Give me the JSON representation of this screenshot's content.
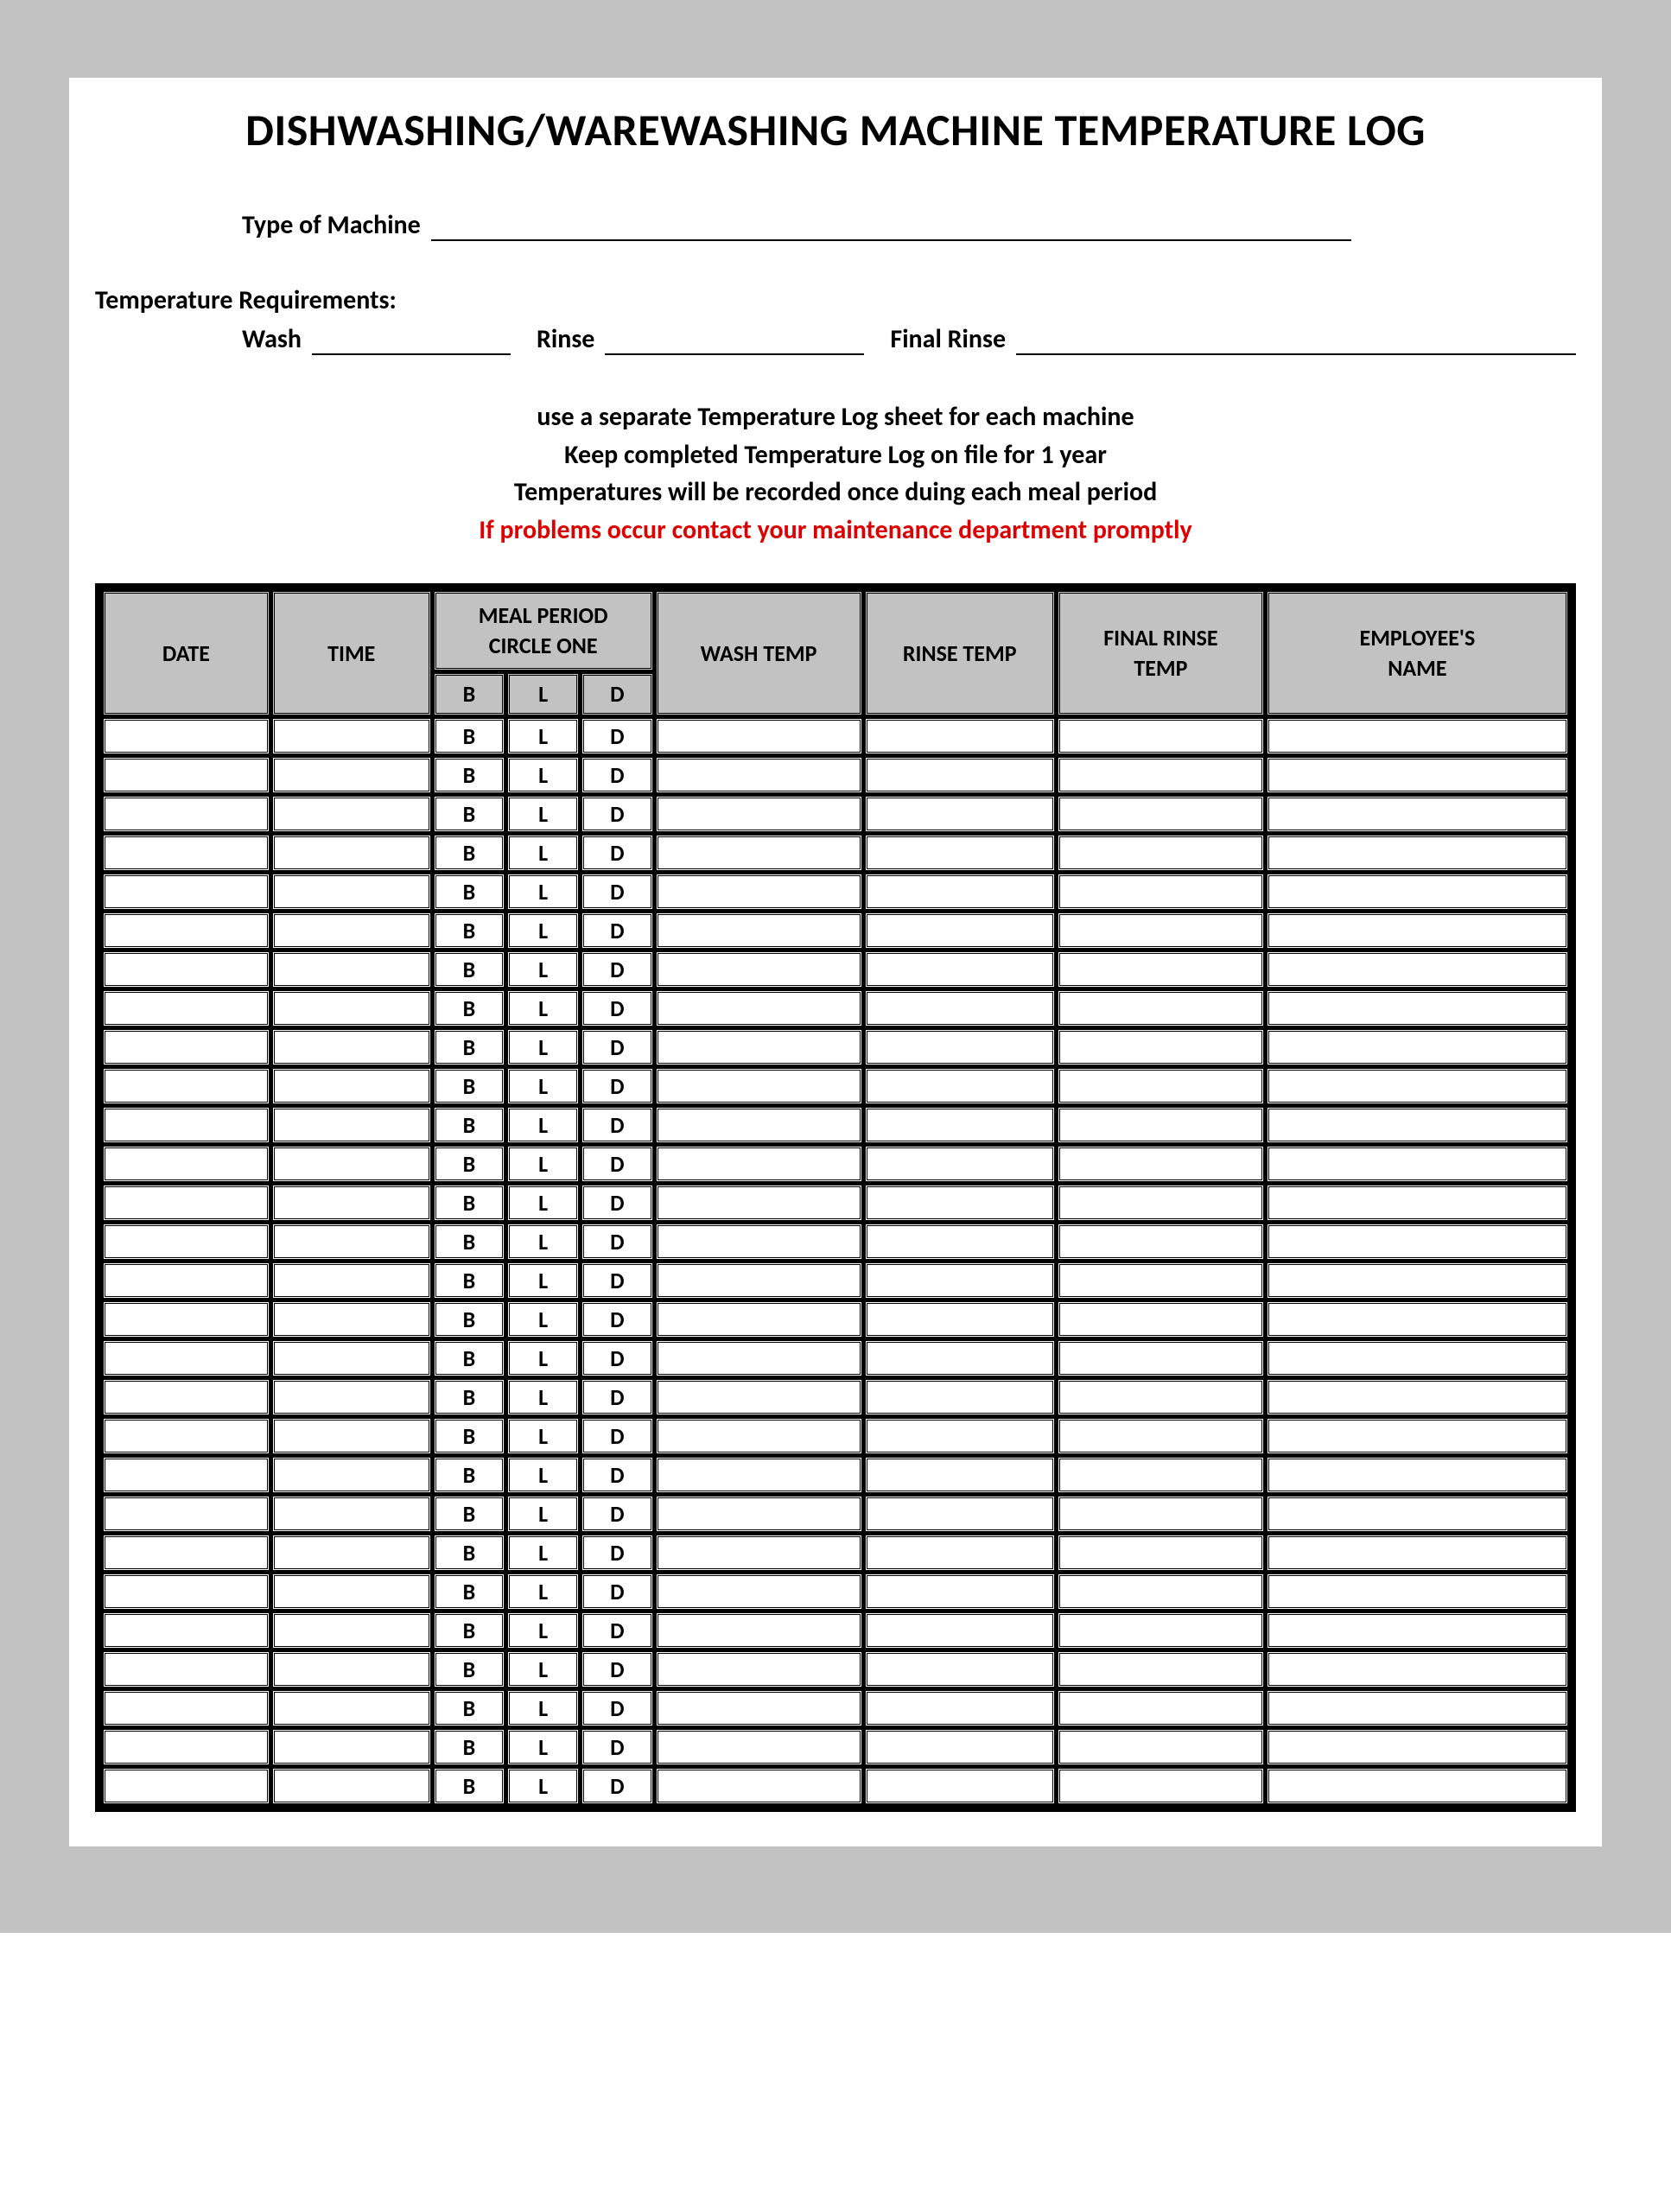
{
  "title": "DISHWASHING/WAREWASHING MACHINE TEMPERATURE LOG",
  "type_of_machine_label": "Type of Machine",
  "temp_req_label": "Temperature Requirements:",
  "wash_label": "Wash",
  "rinse_label": "Rinse",
  "final_rinse_label": "Final Rinse",
  "instructions": {
    "line1": "use a separate Temperature Log sheet for each machine",
    "line2": "Keep completed Temperature Log on file for 1 year",
    "line3": "Temperatures will be recorded once duing each meal period",
    "line4_red": "If problems occur contact your maintenance department promptly"
  },
  "table": {
    "headers": {
      "date": "DATE",
      "time": "TIME",
      "meal_period_line1": "MEAL PERIOD",
      "meal_period_line2": "CIRCLE ONE",
      "b": "B",
      "l": "L",
      "d": "D",
      "wash_temp": "WASH TEMP",
      "rinse_temp": "RINSE TEMP",
      "final_rinse_temp_line1": "FINAL RINSE",
      "final_rinse_temp_line2": "TEMP",
      "employee_line1": "EMPLOYEE'S",
      "employee_line2": "NAME"
    },
    "row_count": 28,
    "row_meal_options": {
      "b": "B",
      "l": "L",
      "d": "D"
    },
    "colors": {
      "header_bg": "#c2c2c2",
      "border": "#000000",
      "text": "#000000",
      "alert_text": "#dd0000",
      "page_bg": "#ffffff"
    },
    "column_widths_pct": {
      "date": 10.5,
      "time": 10,
      "b": 4.5,
      "l": 4.5,
      "d": 4.5,
      "wash": 13,
      "rinse": 12,
      "final": 13,
      "employee": 19
    }
  }
}
